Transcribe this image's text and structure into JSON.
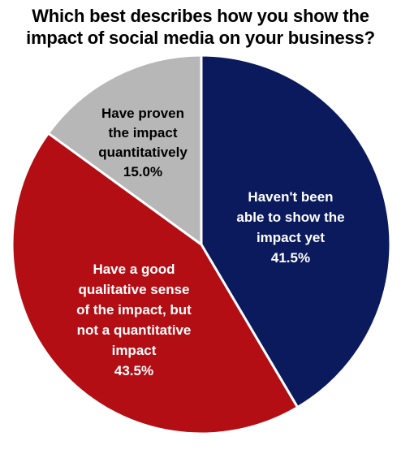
{
  "chart_data": {
    "type": "pie",
    "title": [
      "Which best describes how you show the",
      "impact of social media on your business?"
    ],
    "slices": [
      {
        "label": [
          "Haven't been",
          "able to show the",
          "impact yet"
        ],
        "value": 41.5,
        "value_label": "41.5%",
        "color": "#0b1a5c",
        "text_color": "#ffffff"
      },
      {
        "label": [
          "Have a good",
          "qualitative  sense",
          "of the impact, but",
          "not a quantitative",
          "impact"
        ],
        "value": 43.5,
        "value_label": "43.5%",
        "color": "#b30e14",
        "text_color": "#ffffff"
      },
      {
        "label": [
          "Have proven",
          "the impact",
          "quantitatively"
        ],
        "value": 15.0,
        "value_label": "15.0%",
        "color": "#b7b7b7",
        "text_color": "#000000"
      }
    ]
  }
}
